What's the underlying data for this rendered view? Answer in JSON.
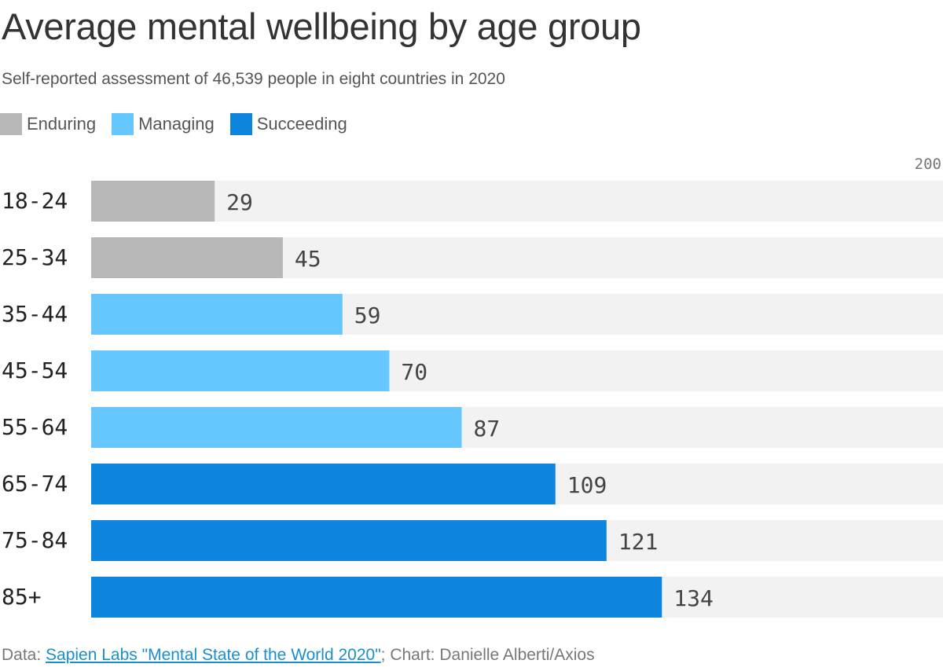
{
  "title": "Average mental wellbeing by age group",
  "subtitle": "Self-reported assessment of 46,539 people in eight countries in 2020",
  "legend": [
    {
      "label": "Enduring",
      "color": "#b8b8b8"
    },
    {
      "label": "Managing",
      "color": "#66c7ff"
    },
    {
      "label": "Succeeding",
      "color": "#0d84dd"
    }
  ],
  "footer": {
    "prefix": "Data: ",
    "source_link": "Sapien Labs \"Mental State of the World 2020\"",
    "suffix": "; Chart: Danielle Alberti/Axios"
  },
  "chart_data": {
    "type": "bar",
    "orientation": "horizontal",
    "categories": [
      "18-24",
      "25-34",
      "35-44",
      "45-54",
      "55-64",
      "65-74",
      "75-84",
      "85+"
    ],
    "values": [
      29,
      45,
      59,
      70,
      87,
      109,
      121,
      134
    ],
    "groups": [
      "Enduring",
      "Enduring",
      "Managing",
      "Managing",
      "Managing",
      "Succeeding",
      "Succeeding",
      "Succeeding"
    ],
    "xlim": [
      0,
      200
    ],
    "axis_max_label": "200",
    "track_color": "#f2f2f2",
    "grid": false,
    "legend_position": "top-left"
  }
}
